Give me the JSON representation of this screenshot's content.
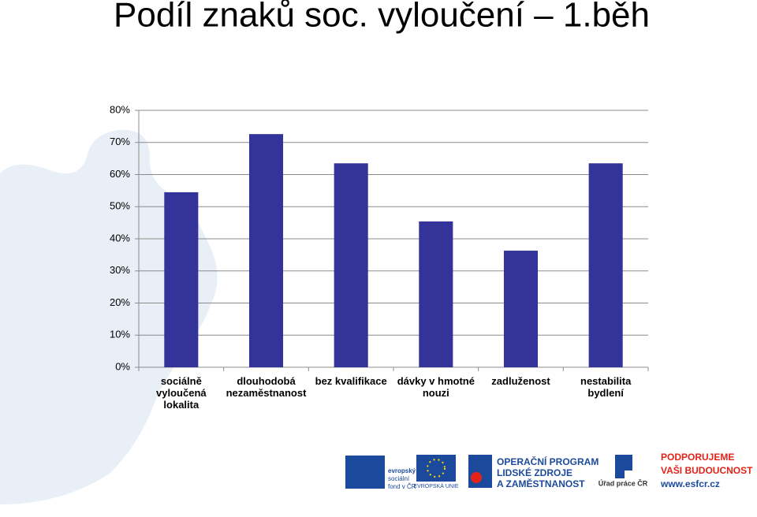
{
  "chart_data": {
    "type": "bar",
    "title": "Podíl znaků soc. vyloučení – 1.běh",
    "categories": [
      "sociálně vyloučená lokalita",
      "dlouhodobá nezaměstnanost",
      "bez kvalifikace",
      "dávky v hmotné nouzi",
      "zadluženost",
      "nestabilita bydlení"
    ],
    "values": [
      54.5,
      72.6,
      63.5,
      45.4,
      36.3,
      63.5
    ],
    "color": "#333399",
    "ylim": [
      0,
      80
    ],
    "yticks": [
      {
        "value": 0,
        "label": "0%"
      },
      {
        "value": 10,
        "label": "10%"
      },
      {
        "value": 20,
        "label": "20%"
      },
      {
        "value": 30,
        "label": "30%"
      },
      {
        "value": 40,
        "label": "40%"
      },
      {
        "value": 50,
        "label": "50%"
      },
      {
        "value": 60,
        "label": "60%"
      },
      {
        "value": 70,
        "label": "70%"
      },
      {
        "value": 80,
        "label": "80%"
      }
    ],
    "grid": true
  },
  "logos": {
    "esf": [
      "evropský",
      "sociální",
      "fond v ČR"
    ],
    "eu": "EVROPSKÁ UNIE",
    "op": [
      "OPERAČNÍ PROGRAM",
      "LIDSKÉ ZDROJE",
      "A ZAMĚSTNANOST"
    ],
    "up": "Úřad práce ČR",
    "slogan": [
      "PODPORUJEME",
      "VAŠI BUDOUCNOST",
      "www.esfcr.cz"
    ]
  }
}
